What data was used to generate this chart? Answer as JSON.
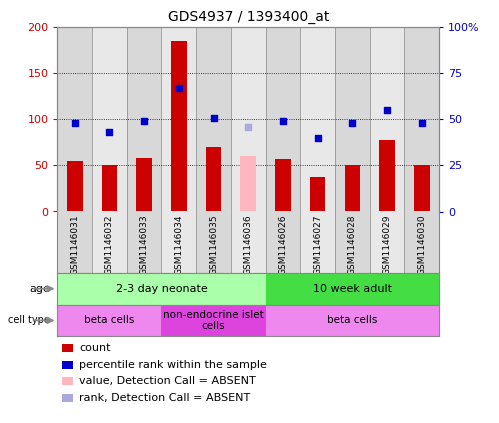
{
  "title": "GDS4937 / 1393400_at",
  "samples": [
    "GSM1146031",
    "GSM1146032",
    "GSM1146033",
    "GSM1146034",
    "GSM1146035",
    "GSM1146036",
    "GSM1146026",
    "GSM1146027",
    "GSM1146028",
    "GSM1146029",
    "GSM1146030"
  ],
  "count_values": [
    55,
    50,
    58,
    185,
    70,
    null,
    57,
    38,
    50,
    78,
    50
  ],
  "count_absent": [
    null,
    null,
    null,
    null,
    null,
    60,
    null,
    null,
    null,
    null,
    null
  ],
  "rank_values": [
    48,
    43,
    49,
    67,
    51,
    null,
    49,
    40,
    48,
    55,
    48
  ],
  "rank_absent": [
    null,
    null,
    null,
    null,
    null,
    46,
    null,
    null,
    null,
    null,
    null
  ],
  "left_ylim": [
    0,
    200
  ],
  "right_ylim": [
    0,
    100
  ],
  "left_yticks": [
    0,
    50,
    100,
    150,
    200
  ],
  "right_yticks": [
    0,
    25,
    50,
    75,
    100
  ],
  "right_yticklabels": [
    "0",
    "25",
    "50",
    "75",
    "100%"
  ],
  "age_groups": [
    {
      "label": "2-3 day neonate",
      "start": 0,
      "end": 6,
      "color": "#aaffaa"
    },
    {
      "label": "10 week adult",
      "start": 6,
      "end": 11,
      "color": "#44dd44"
    }
  ],
  "cell_type_groups": [
    {
      "label": "beta cells",
      "start": 0,
      "end": 3,
      "color": "#ee88ee"
    },
    {
      "label": "non-endocrine islet\ncells",
      "start": 3,
      "end": 6,
      "color": "#dd44dd"
    },
    {
      "label": "beta cells",
      "start": 6,
      "end": 11,
      "color": "#ee88ee"
    }
  ],
  "bar_color": "#cc0000",
  "bar_absent_color": "#ffb6c1",
  "dot_color": "#0000cc",
  "dot_absent_color": "#aaaadd",
  "bar_width": 0.45,
  "dotsize": 22,
  "bg_color": "#ffffff",
  "tick_color_left": "#cc0000",
  "tick_color_right": "#0000cc",
  "title_size": 10,
  "col_bg_even": "#d8d8d8",
  "col_bg_odd": "#e8e8e8",
  "label_area_color": "#d0d0d0"
}
